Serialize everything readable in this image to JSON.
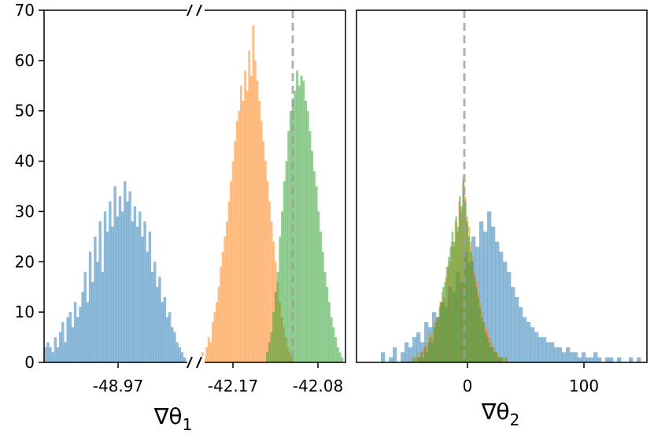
{
  "chart_data": [
    {
      "type": "histogram",
      "xlabel": "∇θ",
      "xlabel_subscript": "1",
      "ylim": [
        0,
        70
      ],
      "yticks": [
        0,
        10,
        20,
        30,
        40,
        50,
        60,
        70
      ],
      "broken_x_axis": true,
      "xtick_labels": [
        "-48.97",
        "-42.17",
        "-42.08"
      ],
      "grid": false,
      "reference_line": {
        "style": "dashed",
        "color": "#9e9e9e",
        "position": "near -42.08"
      },
      "series": [
        {
          "color": "#1f77b4",
          "approx_peak": 36,
          "approx_center_label": "-48.97",
          "profile": [
            3,
            4,
            3,
            2,
            5,
            3,
            6,
            8,
            4,
            9,
            10,
            7,
            12,
            9,
            11,
            14,
            18,
            12,
            22,
            16,
            25,
            20,
            28,
            18,
            30,
            26,
            32,
            27,
            35,
            29,
            33,
            30,
            36,
            32,
            34,
            28,
            31,
            27,
            30,
            25,
            28,
            22,
            26,
            18,
            20,
            15,
            17,
            12,
            13,
            9,
            10,
            7,
            6,
            4,
            3,
            2,
            1
          ]
        },
        {
          "color": "#ff7f0e",
          "approx_peak": 67,
          "approx_center_label": "-42.17",
          "profile": [
            2,
            1,
            3,
            5,
            4,
            8,
            10,
            12,
            15,
            19,
            22,
            25,
            28,
            32,
            36,
            40,
            44,
            48,
            50,
            55,
            52,
            58,
            54,
            62,
            57,
            67,
            60,
            56,
            52,
            48,
            44,
            40,
            36,
            32,
            28,
            24,
            20,
            16,
            12,
            9,
            7,
            5,
            3,
            2,
            1
          ]
        },
        {
          "color": "#2ca02c",
          "approx_peak": 58,
          "approx_center_label": "-42.08",
          "profile": [
            2,
            4,
            6,
            10,
            14,
            18,
            25,
            30,
            36,
            40,
            46,
            50,
            52,
            54,
            58,
            55,
            57,
            56,
            52,
            50,
            46,
            42,
            38,
            35,
            30,
            26,
            22,
            18,
            15,
            12,
            9,
            7,
            5,
            3,
            2,
            1
          ]
        }
      ]
    },
    {
      "type": "histogram",
      "xlabel": "∇θ",
      "xlabel_subscript": "2",
      "xticks": [
        0,
        100
      ],
      "xtick_labels": [
        "0",
        "100"
      ],
      "ylim": [
        0,
        70
      ],
      "grid": false,
      "reference_line": {
        "style": "dashed",
        "color": "#9e9e9e",
        "x": 0
      },
      "series": [
        {
          "color": "#1f77b4",
          "approx_peak": 30,
          "profile": [
            2,
            0,
            1,
            3,
            0,
            2,
            4,
            3,
            5,
            6,
            4,
            8,
            7,
            10,
            9,
            12,
            11,
            15,
            14,
            18,
            16,
            22,
            20,
            25,
            23,
            28,
            26,
            30,
            27,
            24,
            22,
            20,
            18,
            15,
            13,
            11,
            9,
            8,
            7,
            6,
            5,
            5,
            4,
            4,
            3,
            3,
            2,
            3,
            2,
            2,
            1,
            2,
            1,
            1,
            2,
            1,
            0,
            1,
            1,
            0,
            1,
            0,
            0,
            1,
            0,
            1
          ]
        },
        {
          "color": "#ff7f0e",
          "approx_peak": 37,
          "profile": [
            0,
            0,
            0,
            1,
            0,
            1,
            2,
            1,
            2,
            3,
            4,
            3,
            5,
            6,
            5,
            8,
            9,
            8,
            12,
            14,
            13,
            17,
            19,
            20,
            24,
            23,
            28,
            26,
            32,
            30,
            37,
            33,
            29,
            27,
            24,
            21,
            18,
            16,
            14,
            12,
            10,
            8,
            7,
            6,
            5,
            4,
            3,
            2,
            2,
            1,
            1,
            1,
            0,
            1,
            0,
            0
          ]
        },
        {
          "color": "#2ca02c",
          "approx_peak": 36,
          "profile": [
            0,
            0,
            0,
            1,
            0,
            1,
            1,
            2,
            1,
            3,
            2,
            4,
            5,
            4,
            7,
            8,
            9,
            11,
            12,
            15,
            16,
            19,
            21,
            23,
            26,
            24,
            29,
            27,
            33,
            31,
            36,
            32,
            28,
            25,
            22,
            20,
            17,
            15,
            13,
            11,
            9,
            8,
            6,
            5,
            4,
            3,
            3,
            2,
            2,
            1,
            1,
            1,
            0,
            1,
            0,
            0
          ]
        }
      ]
    }
  ]
}
